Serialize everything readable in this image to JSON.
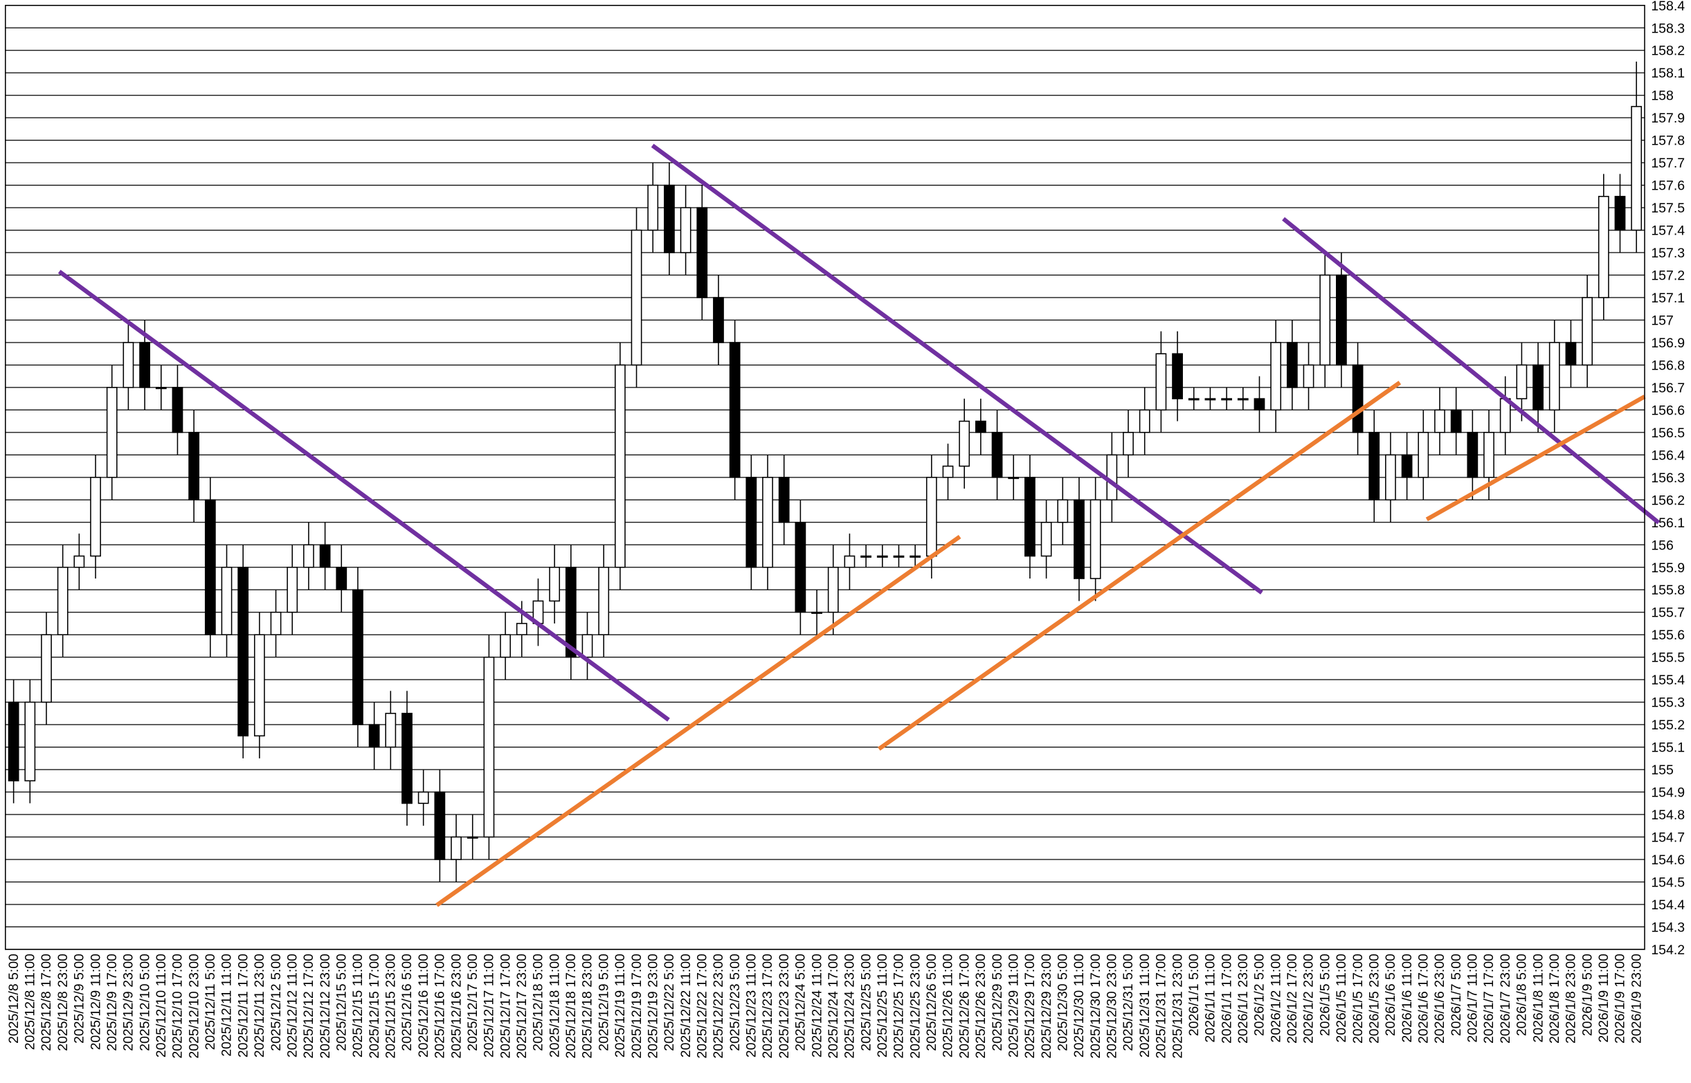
{
  "chart_data": {
    "type": "candlestick",
    "categories": [
      "2025/12/8 5:00",
      "2025/12/8 11:00",
      "2025/12/8 17:00",
      "2025/12/8 23:00",
      "2025/12/9 5:00",
      "2025/12/9 11:00",
      "2025/12/9 17:00",
      "2025/12/9 23:00",
      "2025/12/10 5:00",
      "2025/12/10 11:00",
      "2025/12/10 17:00",
      "2025/12/10 23:00",
      "2025/12/11 5:00",
      "2025/12/11 11:00",
      "2025/12/11 17:00",
      "2025/12/11 23:00",
      "2025/12/12 5:00",
      "2025/12/12 11:00",
      "2025/12/12 17:00",
      "2025/12/12 23:00",
      "2025/12/15 5:00",
      "2025/12/15 11:00",
      "2025/12/15 17:00",
      "2025/12/15 23:00",
      "2025/12/16 5:00",
      "2025/12/16 11:00",
      "2025/12/16 17:00",
      "2025/12/16 23:00",
      "2025/12/17 5:00",
      "2025/12/17 11:00",
      "2025/12/17 17:00",
      "2025/12/17 23:00",
      "2025/12/18 5:00",
      "2025/12/18 11:00",
      "2025/12/18 17:00",
      "2025/12/18 23:00",
      "2025/12/19 5:00",
      "2025/12/19 11:00",
      "2025/12/19 17:00",
      "2025/12/19 23:00",
      "2025/12/22 5:00",
      "2025/12/22 11:00",
      "2025/12/22 17:00",
      "2025/12/22 23:00",
      "2025/12/23 5:00",
      "2025/12/23 11:00",
      "2025/12/23 17:00",
      "2025/12/23 23:00",
      "2025/12/24 5:00",
      "2025/12/24 11:00",
      "2025/12/24 17:00",
      "2025/12/24 23:00",
      "2025/12/25 5:00",
      "2025/12/25 11:00",
      "2025/12/25 17:00",
      "2025/12/25 23:00",
      "2025/12/26 5:00",
      "2025/12/26 11:00",
      "2025/12/26 17:00",
      "2025/12/26 23:00",
      "2025/12/29 5:00",
      "2025/12/29 11:00",
      "2025/12/29 17:00",
      "2025/12/29 23:00",
      "2025/12/30 5:00",
      "2025/12/30 11:00",
      "2025/12/30 17:00",
      "2025/12/30 23:00",
      "2025/12/31 5:00",
      "2025/12/31 11:00",
      "2025/12/31 17:00",
      "2025/12/31 23:00",
      "2026/1/1 5:00",
      "2026/1/1 11:00",
      "2026/1/1 17:00",
      "2026/1/1 23:00",
      "2026/1/2 5:00",
      "2026/1/2 11:00",
      "2026/1/2 17:00",
      "2026/1/2 23:00",
      "2026/1/5 5:00",
      "2026/1/5 11:00",
      "2026/1/5 17:00",
      "2026/1/5 23:00",
      "2026/1/6 5:00",
      "2026/1/6 11:00",
      "2026/1/6 17:00",
      "2026/1/6 23:00",
      "2026/1/7 5:00",
      "2026/1/7 11:00",
      "2026/1/7 17:00",
      "2026/1/7 23:00",
      "2026/1/8 5:00",
      "2026/1/8 11:00",
      "2026/1/8 17:00",
      "2026/1/8 23:00",
      "2026/1/9 5:00",
      "2026/1/9 11:00",
      "2026/1/9 17:00",
      "2026/1/9 23:00"
    ],
    "open": [
      155.3,
      154.95,
      155.3,
      155.6,
      155.9,
      155.95,
      156.3,
      156.7,
      156.9,
      156.7,
      156.7,
      156.5,
      156.2,
      155.6,
      155.9,
      155.15,
      155.6,
      155.7,
      155.9,
      156.0,
      155.9,
      155.8,
      155.2,
      155.1,
      155.25,
      154.85,
      154.9,
      154.6,
      154.7,
      154.7,
      155.5,
      155.6,
      155.65,
      155.75,
      155.9,
      155.5,
      155.6,
      155.9,
      156.8,
      157.4,
      157.6,
      157.3,
      157.5,
      157.1,
      156.9,
      156.3,
      155.9,
      156.3,
      156.1,
      155.7,
      155.7,
      155.9,
      155.95,
      155.95,
      155.95,
      155.95,
      155.95,
      156.3,
      156.35,
      156.55,
      156.5,
      156.3,
      156.3,
      155.95,
      156.1,
      156.2,
      155.85,
      156.2,
      156.4,
      156.5,
      156.6,
      156.85,
      156.65,
      156.65,
      156.65,
      156.65,
      156.65,
      156.6,
      156.9,
      156.7,
      156.8,
      157.2,
      156.8,
      156.5,
      156.2,
      156.4,
      156.3,
      156.5,
      156.6,
      156.5,
      156.3,
      156.5,
      156.65,
      156.8,
      156.6,
      156.9,
      156.8,
      157.1,
      157.55,
      157.4
    ],
    "high": [
      155.4,
      155.4,
      155.7,
      156.0,
      156.05,
      156.4,
      156.8,
      157.0,
      157.0,
      156.8,
      156.8,
      156.6,
      156.3,
      156.0,
      156.0,
      155.7,
      155.8,
      156.0,
      156.1,
      156.1,
      156.0,
      155.9,
      155.3,
      155.35,
      155.35,
      155.0,
      155.0,
      154.8,
      154.8,
      155.6,
      155.7,
      155.75,
      155.85,
      156.0,
      156.0,
      155.7,
      156.0,
      156.9,
      157.5,
      157.7,
      157.7,
      157.6,
      157.6,
      157.2,
      157.0,
      156.4,
      156.4,
      156.4,
      156.2,
      155.8,
      156.0,
      156.05,
      156.0,
      156.0,
      156.0,
      156.0,
      156.4,
      156.45,
      156.65,
      156.65,
      156.6,
      156.4,
      156.4,
      156.2,
      156.3,
      156.3,
      156.3,
      156.5,
      156.6,
      156.7,
      156.95,
      156.95,
      156.7,
      156.7,
      156.7,
      156.7,
      156.75,
      157.0,
      157.0,
      156.9,
      157.3,
      157.3,
      156.9,
      156.6,
      156.5,
      156.5,
      156.6,
      156.7,
      156.7,
      156.6,
      156.6,
      156.75,
      156.9,
      156.9,
      157.0,
      157.0,
      157.2,
      157.65,
      157.65,
      158.15
    ],
    "low": [
      154.85,
      154.85,
      155.2,
      155.5,
      155.8,
      155.85,
      156.2,
      156.6,
      156.6,
      156.6,
      156.4,
      156.1,
      155.5,
      155.5,
      155.05,
      155.05,
      155.5,
      155.6,
      155.8,
      155.8,
      155.7,
      155.1,
      155.0,
      155.0,
      154.75,
      154.75,
      154.5,
      154.5,
      154.6,
      154.6,
      155.4,
      155.5,
      155.55,
      155.65,
      155.4,
      155.4,
      155.5,
      155.8,
      156.7,
      157.3,
      157.2,
      157.2,
      157.0,
      156.8,
      156.2,
      155.8,
      155.8,
      156.0,
      155.6,
      155.6,
      155.6,
      155.8,
      155.9,
      155.9,
      155.9,
      155.9,
      155.85,
      156.2,
      156.25,
      156.4,
      156.2,
      156.2,
      155.85,
      155.85,
      156.0,
      155.75,
      155.75,
      156.1,
      156.3,
      156.4,
      156.5,
      156.55,
      156.6,
      156.6,
      156.6,
      156.6,
      156.5,
      156.5,
      156.6,
      156.6,
      156.7,
      156.7,
      156.4,
      156.1,
      156.1,
      156.2,
      156.2,
      156.4,
      156.4,
      156.2,
      156.2,
      156.4,
      156.55,
      156.5,
      156.5,
      156.7,
      156.7,
      157.0,
      157.3,
      157.3
    ],
    "close": [
      154.95,
      155.3,
      155.6,
      155.9,
      155.95,
      156.3,
      156.7,
      156.9,
      156.7,
      156.7,
      156.5,
      156.2,
      155.6,
      155.9,
      155.15,
      155.6,
      155.7,
      155.9,
      156.0,
      155.9,
      155.8,
      155.2,
      155.1,
      155.25,
      154.85,
      154.9,
      154.6,
      154.7,
      154.7,
      155.5,
      155.6,
      155.65,
      155.75,
      155.9,
      155.5,
      155.6,
      155.9,
      156.8,
      157.4,
      157.6,
      157.3,
      157.5,
      157.1,
      156.9,
      156.3,
      155.9,
      156.3,
      156.1,
      155.7,
      155.7,
      155.9,
      155.95,
      155.95,
      155.95,
      155.95,
      155.95,
      156.3,
      156.35,
      156.55,
      156.5,
      156.3,
      156.3,
      155.95,
      156.1,
      156.2,
      155.85,
      156.2,
      156.4,
      156.5,
      156.6,
      156.85,
      156.65,
      156.65,
      156.65,
      156.65,
      156.65,
      156.6,
      156.9,
      156.7,
      156.8,
      157.2,
      156.8,
      156.5,
      156.2,
      156.4,
      156.3,
      156.5,
      156.6,
      156.5,
      156.3,
      156.5,
      156.65,
      156.8,
      156.6,
      156.9,
      156.8,
      157.1,
      157.55,
      157.4,
      157.95
    ],
    "ylim": [
      154.2,
      158.4
    ],
    "yticks": [
      154.2,
      154.3,
      154.4,
      154.5,
      154.6,
      154.7,
      154.8,
      154.9,
      155,
      155.1,
      155.2,
      155.3,
      155.4,
      155.5,
      155.6,
      155.7,
      155.8,
      155.9,
      156,
      156.1,
      156.2,
      156.3,
      156.4,
      156.5,
      156.6,
      156.7,
      156.8,
      156.9,
      157,
      157.1,
      157.2,
      157.3,
      157.4,
      157.5,
      157.6,
      157.7,
      157.8,
      157.9,
      158,
      158.1,
      158.2,
      158.3,
      158.4
    ],
    "grid": true,
    "up_color": "#ffffff",
    "down_color": "#000000"
  }
}
